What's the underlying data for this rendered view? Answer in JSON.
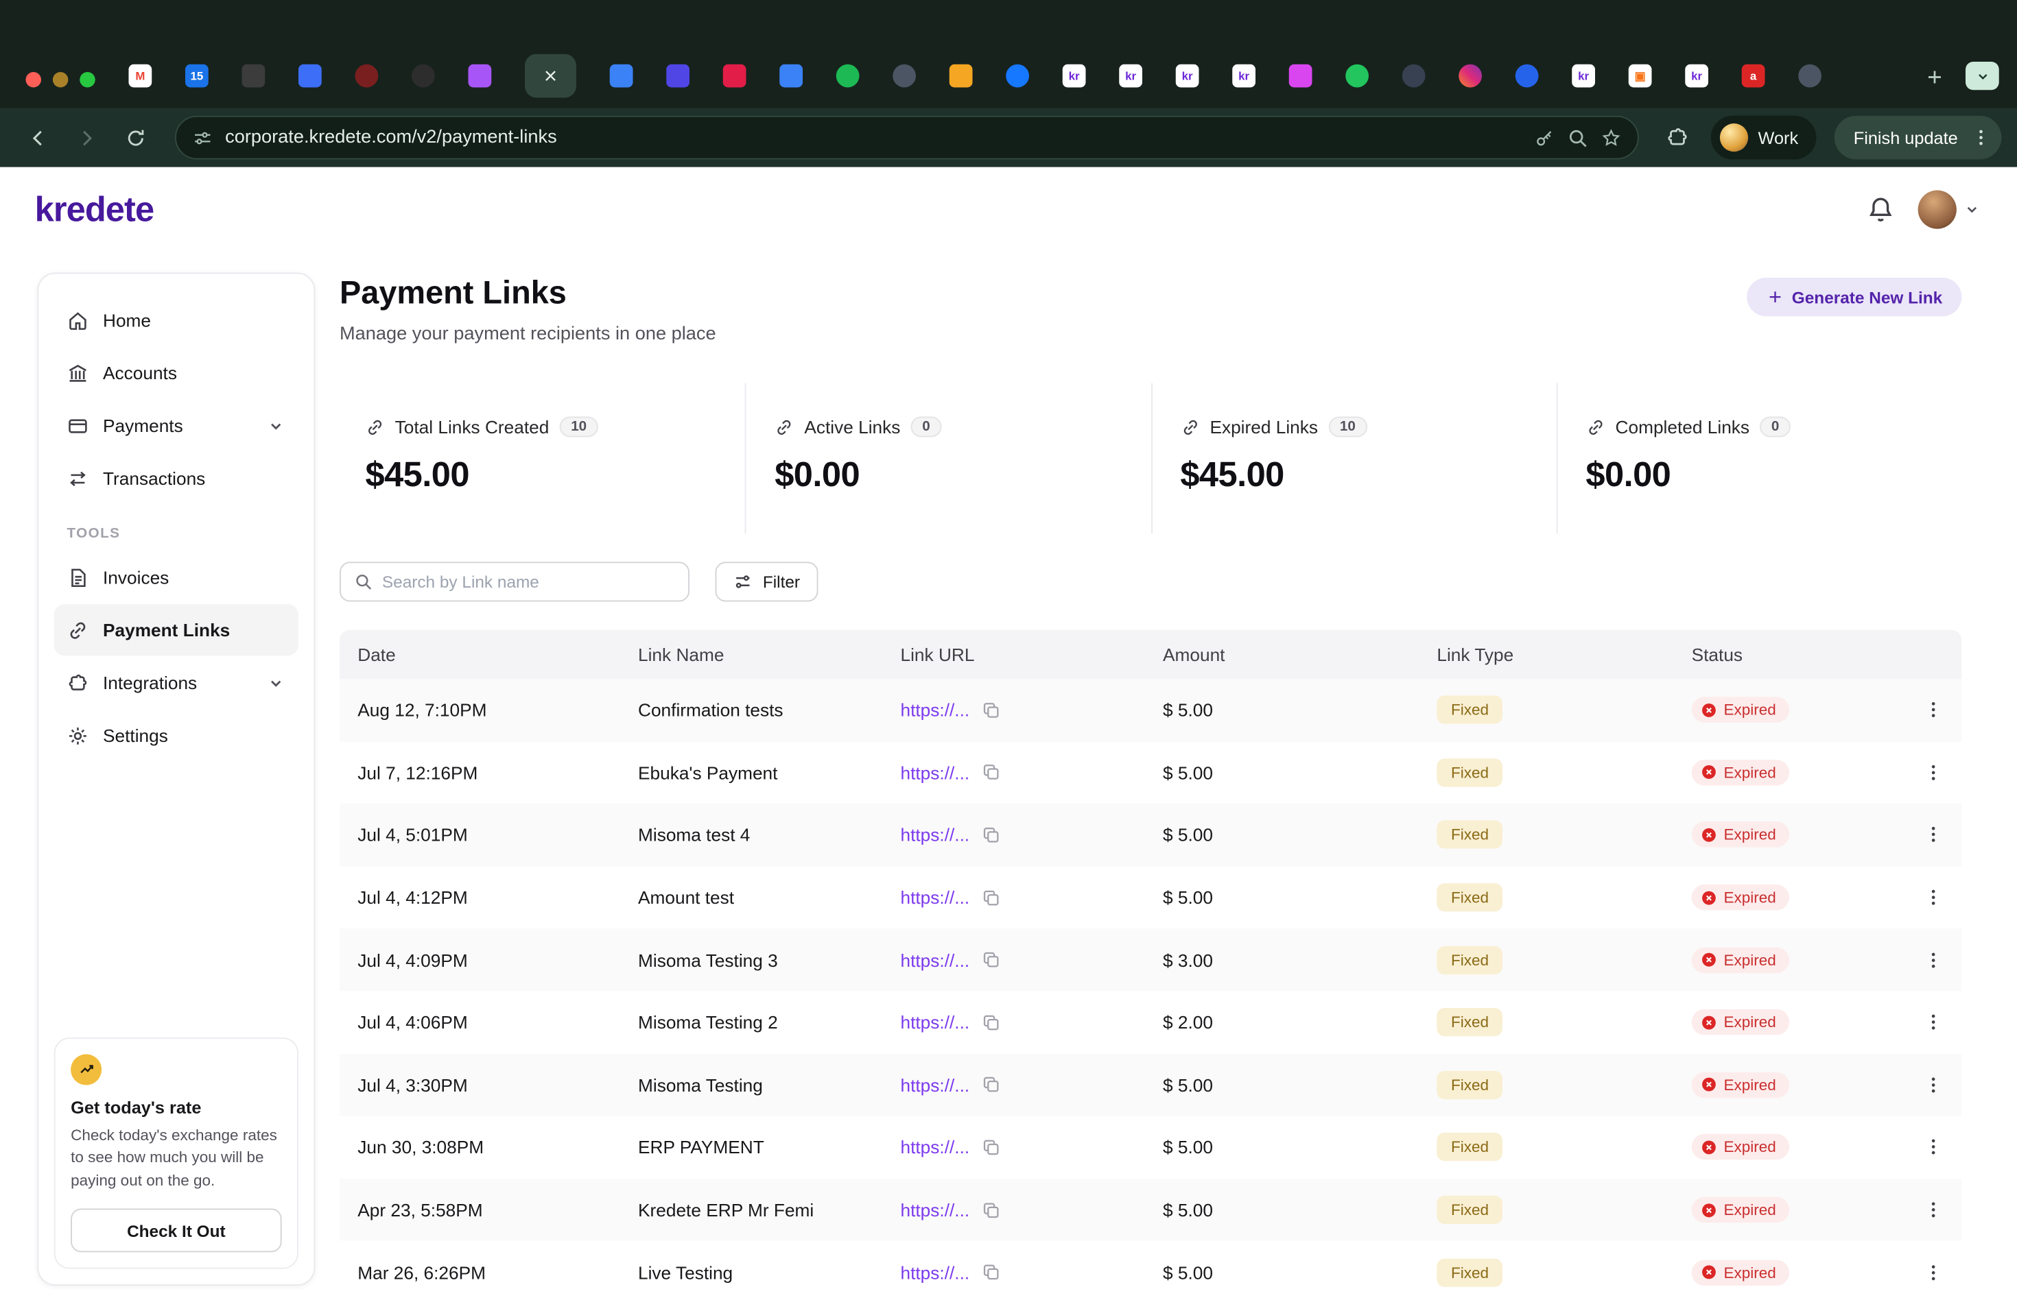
{
  "browser": {
    "url": "corporate.kredete.com/v2/payment-links",
    "profile_label": "Work",
    "update_button": "Finish update",
    "tabs": [
      {
        "name": "gmail",
        "bg": "#ffffff",
        "glyph": "M",
        "fg": "#ea4335"
      },
      {
        "name": "calendar-15",
        "bg": "#1a73e8",
        "glyph": "15",
        "fg": "#ffffff"
      },
      {
        "name": "camera-dark",
        "bg": "#3c3c3c"
      },
      {
        "name": "blue-app",
        "bg": "#3d6ef7"
      },
      {
        "name": "dark-red-app",
        "bg": "#7a1f1f",
        "round": true
      },
      {
        "name": "dark-app",
        "bg": "#2d2d2d",
        "round": true
      },
      {
        "name": "purple-badge",
        "bg": "#a855f7"
      },
      {
        "name": "active-tab",
        "active": true
      },
      {
        "name": "doc-blue",
        "bg": "#3b82f6"
      },
      {
        "name": "indigo-app",
        "bg": "#4f46e5"
      },
      {
        "name": "red-blue-app",
        "bg": "#e11d48"
      },
      {
        "name": "doc-blue-2",
        "bg": "#3b82f6"
      },
      {
        "name": "spotify",
        "bg": "#1db954",
        "round": true
      },
      {
        "name": "globe-dark",
        "bg": "#4b5563",
        "round": true
      },
      {
        "name": "amber-app",
        "bg": "#f5a623"
      },
      {
        "name": "blue-round-app",
        "bg": "#1677ff",
        "round": true
      },
      {
        "name": "kredete-kr-1",
        "bg": "#ffffff",
        "glyph": "kr",
        "fg": "#6d28d9"
      },
      {
        "name": "kredete-kr-2",
        "bg": "#ffffff",
        "glyph": "kr",
        "fg": "#6d28d9"
      },
      {
        "name": "kredete-kr-3",
        "bg": "#ffffff",
        "glyph": "kr",
        "fg": "#6d28d9"
      },
      {
        "name": "kredete-kr-4",
        "bg": "#ffffff",
        "glyph": "kr",
        "fg": "#6d28d9"
      },
      {
        "name": "pink-grid-app",
        "bg": "#d946ef"
      },
      {
        "name": "leaf-green-app",
        "bg": "#22c55e",
        "round": true
      },
      {
        "name": "dark-ring-app",
        "bg": "#374151",
        "round": true
      },
      {
        "name": "instagram",
        "gradient": true,
        "round": true
      },
      {
        "name": "blue-bars-app",
        "bg": "#2563eb",
        "round": true
      },
      {
        "name": "kredete-kr-5",
        "bg": "#ffffff",
        "glyph": "kr",
        "fg": "#6d28d9"
      },
      {
        "name": "white-orange-app",
        "bg": "#ffffff",
        "glyph": "▣",
        "fg": "#f97316"
      },
      {
        "name": "kredete-kr-6",
        "bg": "#ffffff",
        "glyph": "kr",
        "fg": "#6d28d9"
      },
      {
        "name": "red-a-app",
        "bg": "#dc2626",
        "glyph": "a",
        "fg": "#ffffff"
      },
      {
        "name": "globe-dark-2",
        "bg": "#4b5563",
        "round": true
      }
    ]
  },
  "header": {
    "logo": "kredete"
  },
  "sidebar": {
    "nav": [
      {
        "label": "Home",
        "icon": "home"
      },
      {
        "label": "Accounts",
        "icon": "bank"
      },
      {
        "label": "Payments",
        "icon": "card",
        "expandable": true
      },
      {
        "label": "Transactions",
        "icon": "exchange"
      }
    ],
    "tools_label": "TOOLS",
    "tools": [
      {
        "label": "Invoices",
        "icon": "invoice"
      },
      {
        "label": "Payment Links",
        "icon": "link",
        "active": true
      },
      {
        "label": "Integrations",
        "icon": "puzzle",
        "expandable": true
      },
      {
        "label": "Settings",
        "icon": "gear"
      }
    ],
    "promo": {
      "title": "Get today's rate",
      "body": "Check today's exchange rates to see how much you will be paying out on the go.",
      "cta": "Check It Out"
    }
  },
  "main": {
    "title": "Payment Links",
    "subtitle": "Manage your payment recipients in one place",
    "generate_button": "Generate New Link",
    "stats": [
      {
        "label": "Total Links Created",
        "count": "10",
        "amount": "$45.00"
      },
      {
        "label": "Active Links",
        "count": "0",
        "amount": "$0.00"
      },
      {
        "label": "Expired Links",
        "count": "10",
        "amount": "$45.00"
      },
      {
        "label": "Completed Links",
        "count": "0",
        "amount": "$0.00"
      }
    ],
    "search_placeholder": "Search by Link name",
    "filter_label": "Filter",
    "table": {
      "columns": [
        "Date",
        "Link Name",
        "Link URL",
        "Amount",
        "Link Type",
        "Status"
      ],
      "rows": [
        {
          "date": "Aug 12, 7:10PM",
          "name": "Confirmation tests",
          "url": "https://...",
          "amount": "$ 5.00",
          "type": "Fixed",
          "status": "Expired"
        },
        {
          "date": "Jul 7, 12:16PM",
          "name": "Ebuka's Payment",
          "url": "https://...",
          "amount": "$ 5.00",
          "type": "Fixed",
          "status": "Expired"
        },
        {
          "date": "Jul 4, 5:01PM",
          "name": "Misoma test 4",
          "url": "https://...",
          "amount": "$ 5.00",
          "type": "Fixed",
          "status": "Expired"
        },
        {
          "date": "Jul 4, 4:12PM",
          "name": "Amount test",
          "url": "https://...",
          "amount": "$ 5.00",
          "type": "Fixed",
          "status": "Expired"
        },
        {
          "date": "Jul 4, 4:09PM",
          "name": "Misoma Testing 3",
          "url": "https://...",
          "amount": "$ 3.00",
          "type": "Fixed",
          "status": "Expired"
        },
        {
          "date": "Jul 4, 4:06PM",
          "name": "Misoma Testing 2",
          "url": "https://...",
          "amount": "$ 2.00",
          "type": "Fixed",
          "status": "Expired"
        },
        {
          "date": "Jul 4, 3:30PM",
          "name": "Misoma Testing",
          "url": "https://...",
          "amount": "$ 5.00",
          "type": "Fixed",
          "status": "Expired"
        },
        {
          "date": "Jun 30, 3:08PM",
          "name": "ERP PAYMENT",
          "url": "https://...",
          "amount": "$ 5.00",
          "type": "Fixed",
          "status": "Expired"
        },
        {
          "date": "Apr 23, 5:58PM",
          "name": "Kredete ERP Mr Femi",
          "url": "https://...",
          "amount": "$ 5.00",
          "type": "Fixed",
          "status": "Expired"
        },
        {
          "date": "Mar 26, 6:26PM",
          "name": "Live Testing",
          "url": "https://...",
          "amount": "$ 5.00",
          "type": "Fixed",
          "status": "Expired"
        }
      ]
    }
  },
  "colors": {
    "brand_purple": "#47199d",
    "link_purple": "#7c3aed",
    "fixed_badge_bg": "#f9efd2",
    "expired_badge_bg": "#fdecec",
    "chrome_dark": "#17221d"
  }
}
